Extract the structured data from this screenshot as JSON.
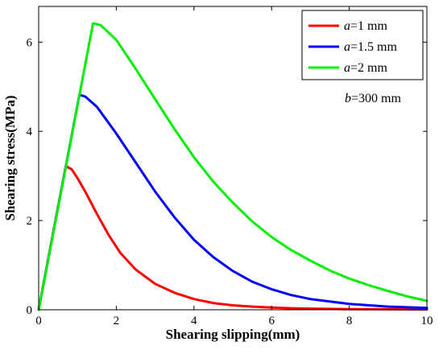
{
  "chart_data": {
    "type": "line",
    "title": "",
    "xlabel": "Shearing slipping(mm)",
    "ylabel": "Shearing stress(MPa)",
    "xlim": [
      0,
      10
    ],
    "ylim": [
      0,
      6.8
    ],
    "xticks": [
      0,
      2,
      4,
      6,
      8,
      10
    ],
    "yticks": [
      0,
      2,
      4,
      6
    ],
    "xtick_labels": [
      "0",
      "2",
      "4",
      "6",
      "8",
      "10"
    ],
    "ytick_labels": [
      "0",
      "2",
      "4",
      "6"
    ],
    "grid": false,
    "legend_position": "top-right",
    "annotation": {
      "italic": "b",
      "rest": "=300 mm"
    },
    "series": [
      {
        "name": "a=1 mm",
        "name_italic": "a",
        "name_rest": "=1 mm",
        "color": "#ff0000",
        "x": [
          0,
          0.3,
          0.7,
          0.85,
          1.0,
          1.2,
          1.5,
          1.8,
          2.1,
          2.5,
          3.0,
          3.5,
          4.0,
          4.5,
          5.0,
          5.5,
          6.0,
          6.5,
          7.0,
          8.0,
          9.0,
          10.0
        ],
        "y": [
          0,
          1.4,
          3.22,
          3.15,
          2.95,
          2.65,
          2.15,
          1.68,
          1.28,
          0.9,
          0.58,
          0.38,
          0.24,
          0.15,
          0.1,
          0.07,
          0.05,
          0.035,
          0.025,
          0.015,
          0.01,
          0.008
        ]
      },
      {
        "name": "a=1.5 mm",
        "name_italic": "a",
        "name_rest": "=1.5 mm",
        "color": "#0000ff",
        "x": [
          0,
          0.5,
          1.05,
          1.2,
          1.5,
          2.0,
          2.5,
          3.0,
          3.5,
          4.0,
          4.5,
          5.0,
          5.5,
          6.0,
          6.5,
          7.0,
          8.0,
          9.0,
          10.0
        ],
        "y": [
          0,
          2.3,
          4.82,
          4.78,
          4.55,
          3.95,
          3.3,
          2.65,
          2.07,
          1.57,
          1.18,
          0.87,
          0.63,
          0.46,
          0.33,
          0.24,
          0.13,
          0.07,
          0.04
        ]
      },
      {
        "name": "a=2 mm",
        "name_italic": "a",
        "name_rest": "=2 mm",
        "color": "#00ee00",
        "x": [
          0,
          0.7,
          1.4,
          1.6,
          2.0,
          2.5,
          3.0,
          3.5,
          4.0,
          4.5,
          5.0,
          5.5,
          6.0,
          6.5,
          7.0,
          7.5,
          8.0,
          8.5,
          9.0,
          9.5,
          10.0
        ],
        "y": [
          0,
          3.2,
          6.42,
          6.38,
          6.05,
          5.4,
          4.72,
          4.05,
          3.42,
          2.87,
          2.4,
          1.98,
          1.63,
          1.34,
          1.1,
          0.88,
          0.7,
          0.55,
          0.42,
          0.3,
          0.2
        ]
      }
    ]
  }
}
